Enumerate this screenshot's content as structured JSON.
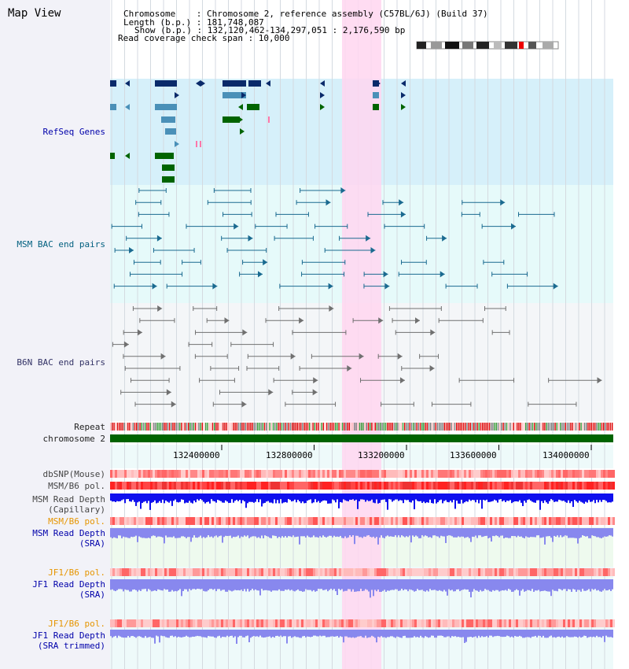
{
  "title": "Map View",
  "info": {
    "chromosome": "Chromosome    : Chromosome 2, reference assembly (C57BL/6J) (Build 37)",
    "length": "Length (b.p.) : 181,748,087",
    "show": "Show (b.p.) : 132,120,462-134,297,051 : 2,176,590 bp",
    "coverage": "Read coverage check span : 10,000"
  },
  "tracks": {
    "refseq": "RefSeq Genes",
    "msm_bac": "MSM BAC end pairs",
    "b6n_bac": "B6N BAC end pairs",
    "repeat": "Repeat",
    "chrom": "chromosome 2",
    "dbsnp": "dbSNP(Mouse)",
    "msm_b6_pol_1": "MSM/B6 pol.",
    "msm_depth_cap_1": "MSM Read Depth",
    "msm_depth_cap_2": "(Capillary)",
    "msm_b6_pol_2": "MSM/B6 pol.",
    "msm_depth_sra_1": "MSM Read Depth",
    "msm_depth_sra_2": "(SRA)",
    "jf1_pol_1": "JF1/B6 pol.",
    "jf1_depth_sra_1": "JF1 Read Depth",
    "jf1_depth_sra_2": "(SRA)",
    "jf1_pol_2": "JF1/B6 pol.",
    "jf1_depth_trim_1": "JF1 Read Depth",
    "jf1_depth_trim_2": "(SRA trimmed)"
  },
  "axis": {
    "ticks": [
      "132400000",
      "132800000",
      "133200000",
      "133600000",
      "134000000"
    ]
  },
  "colors": {
    "highlight": "#ffd6f0",
    "refseq_bg": "#d6f0fa",
    "bac_bg": "#e6fafa",
    "b6n_bg": "#f4f6f8",
    "gene_dark": "#0a2a6a",
    "gene_mid": "#4a90b8",
    "gene_green": "#006400",
    "bac_teal": "#1a6a90",
    "bac_gray": "#707070",
    "chrom_green": "#006400",
    "depth_blue": "#1010ee",
    "depth_light": "#8888ee"
  }
}
